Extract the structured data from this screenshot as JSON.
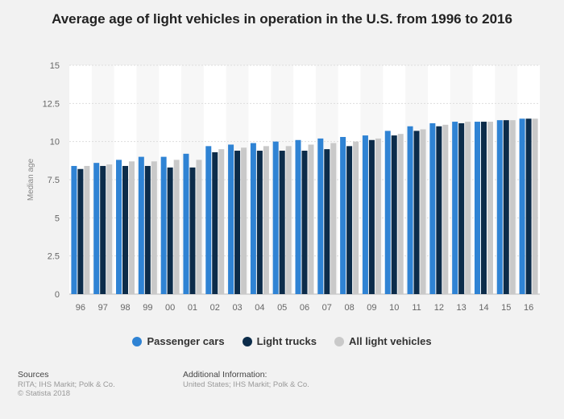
{
  "chart_data": {
    "type": "bar",
    "title": "Average age of light vehicles in operation in the U.S. from 1996 to 2016",
    "xlabel": "",
    "ylabel": "Median age",
    "ylim": [
      0,
      15
    ],
    "yticks": [
      "0",
      "2.5",
      "5",
      "7.5",
      "10",
      "12.5",
      "15"
    ],
    "grid": true,
    "legend_position": "bottom",
    "categories": [
      "96",
      "97",
      "98",
      "99",
      "00",
      "01",
      "02",
      "03",
      "04",
      "05",
      "06",
      "07",
      "08",
      "09",
      "10",
      "11",
      "12",
      "13",
      "14",
      "15",
      "16"
    ],
    "series": [
      {
        "name": "Passenger cars",
        "color": "#2f83d4",
        "values": [
          8.4,
          8.6,
          8.8,
          9.0,
          9.0,
          9.2,
          9.7,
          9.8,
          9.9,
          10.0,
          10.1,
          10.2,
          10.3,
          10.4,
          10.7,
          11.0,
          11.2,
          11.3,
          11.3,
          11.4,
          11.5
        ]
      },
      {
        "name": "Light trucks",
        "color": "#0c2c4a",
        "values": [
          8.2,
          8.4,
          8.4,
          8.4,
          8.3,
          8.3,
          9.3,
          9.4,
          9.4,
          9.4,
          9.4,
          9.5,
          9.7,
          10.1,
          10.4,
          10.7,
          11.0,
          11.2,
          11.3,
          11.4,
          11.5
        ]
      },
      {
        "name": "All light vehicles",
        "color": "#c9c9c9",
        "values": [
          8.4,
          8.5,
          8.7,
          8.7,
          8.8,
          8.8,
          9.5,
          9.6,
          9.7,
          9.7,
          9.8,
          9.9,
          10.0,
          10.2,
          10.5,
          10.8,
          11.1,
          11.3,
          11.3,
          11.4,
          11.5
        ]
      }
    ]
  },
  "footer": {
    "sources_heading": "Sources",
    "sources_line1": "RITA; IHS Markit; Polk & Co.",
    "sources_line2": "© Statista 2018",
    "additional_heading": "Additional Information:",
    "additional_line1": "United States; IHS Markit; Polk & Co."
  }
}
